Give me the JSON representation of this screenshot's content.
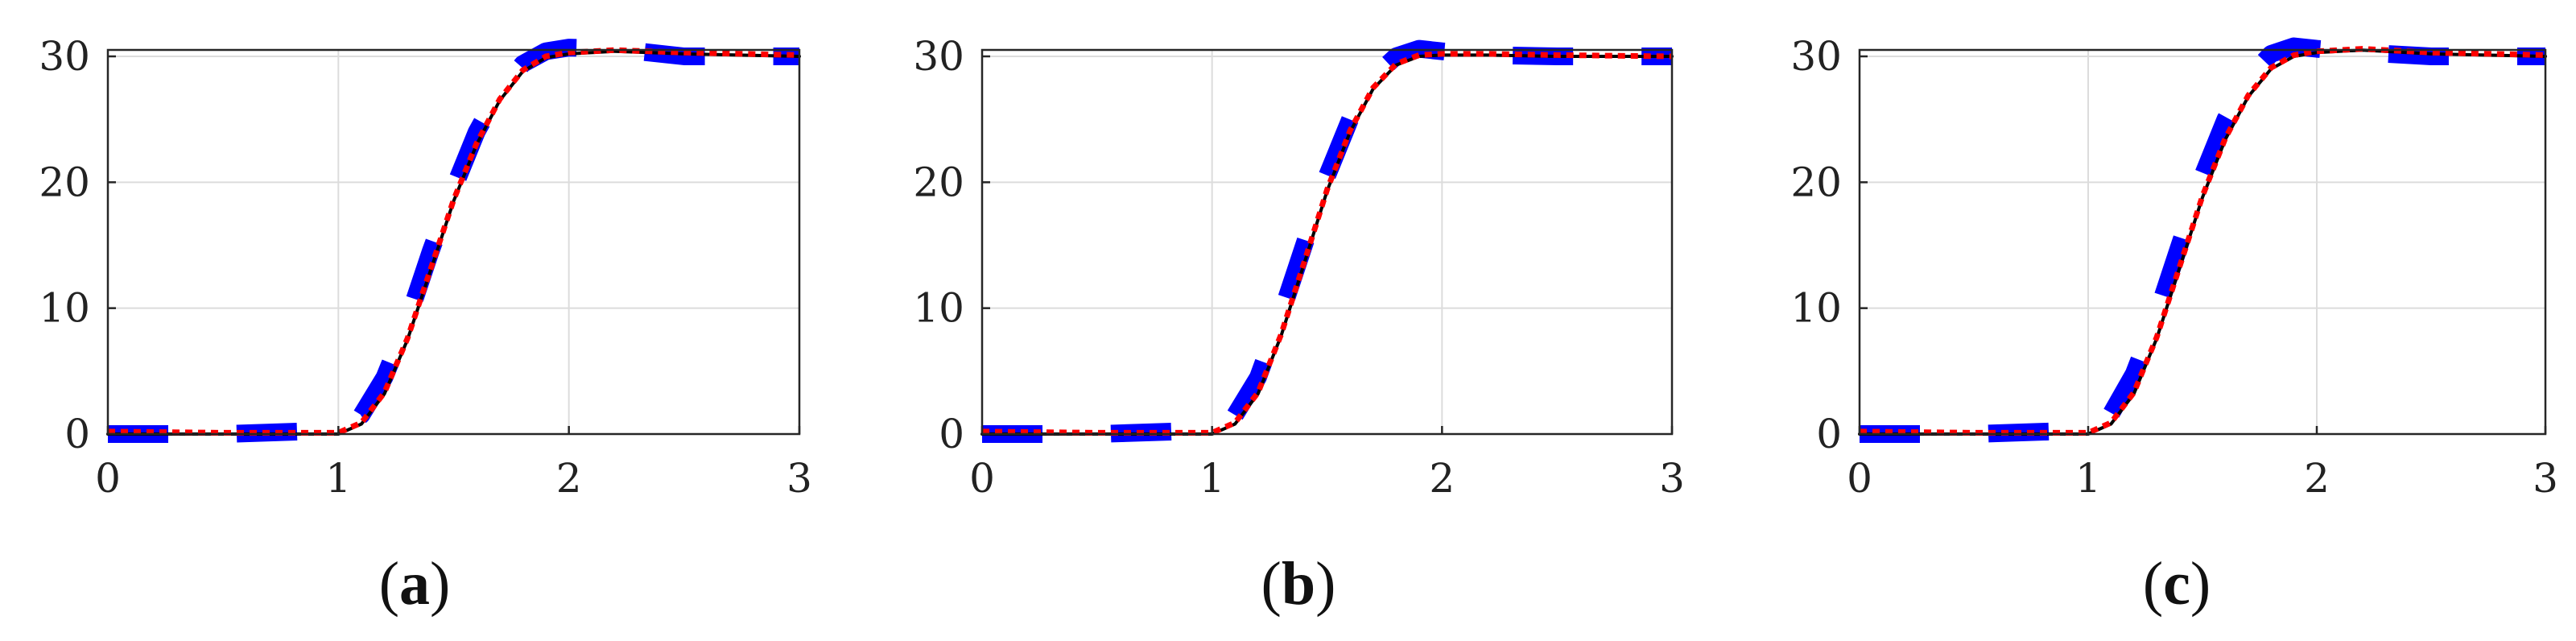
{
  "chart_data": [
    {
      "type": "line",
      "panel_label": "(a)",
      "panel_letter": "a",
      "xlim": [
        0,
        3
      ],
      "ylim": [
        0,
        30
      ],
      "x_ticks": [
        "0",
        "1",
        "2",
        "3"
      ],
      "y_ticks": [
        "0",
        "10",
        "20",
        "30"
      ],
      "grid": true,
      "series": [
        {
          "style": "blue-thick-dashed",
          "color": "#0000ff",
          "x": [
            0,
            0.5,
            1.0,
            1.1,
            1.2,
            1.3,
            1.4,
            1.5,
            1.6,
            1.7,
            1.8,
            1.9,
            2.0,
            2.2,
            2.5,
            3.0
          ],
          "y": [
            0,
            0,
            0.3,
            1.5,
            4.5,
            9,
            14.5,
            19.5,
            24,
            27.3,
            29.4,
            30.4,
            30.7,
            30.6,
            30.0,
            30.0
          ]
        },
        {
          "style": "black-solid",
          "color": "#000000",
          "x": [
            0,
            0.5,
            1.0,
            1.1,
            1.2,
            1.3,
            1.4,
            1.5,
            1.6,
            1.7,
            1.8,
            1.9,
            2.0,
            2.2,
            2.5,
            3.0
          ],
          "y": [
            0,
            0,
            0,
            0.8,
            3.2,
            7.5,
            13,
            18.5,
            23,
            26.5,
            28.8,
            29.9,
            30.2,
            30.4,
            30.2,
            30.0
          ]
        },
        {
          "style": "red-dotted",
          "color": "#ff0000",
          "x": [
            0,
            0.5,
            1.0,
            1.1,
            1.2,
            1.3,
            1.4,
            1.5,
            1.6,
            1.7,
            1.8,
            1.9,
            2.0,
            2.2,
            2.5,
            3.0
          ],
          "y": [
            0.2,
            0.1,
            0.1,
            0.9,
            3.3,
            7.6,
            13.1,
            18.6,
            23.1,
            26.6,
            28.9,
            30.0,
            30.3,
            30.5,
            30.3,
            30.1
          ]
        }
      ]
    },
    {
      "type": "line",
      "panel_label": "(b)",
      "panel_letter": "b",
      "xlim": [
        0,
        3
      ],
      "ylim": [
        0,
        30
      ],
      "x_ticks": [
        "0",
        "1",
        "2",
        "3"
      ],
      "y_ticks": [
        "0",
        "10",
        "20",
        "30"
      ],
      "grid": true,
      "series": [
        {
          "style": "blue-thick-dashed",
          "color": "#0000ff",
          "x": [
            0,
            0.5,
            1.0,
            1.1,
            1.2,
            1.3,
            1.4,
            1.5,
            1.6,
            1.7,
            1.8,
            1.9,
            2.0,
            2.2,
            2.5,
            3.0
          ],
          "y": [
            0,
            0,
            0.3,
            1.5,
            4.5,
            9.5,
            15,
            20.5,
            25,
            28.3,
            30.0,
            30.6,
            30.4,
            30.1,
            30.0,
            30.0
          ]
        },
        {
          "style": "black-solid",
          "color": "#000000",
          "x": [
            0,
            0.5,
            1.0,
            1.1,
            1.2,
            1.3,
            1.4,
            1.5,
            1.6,
            1.7,
            1.8,
            1.9,
            2.0,
            2.2,
            2.5,
            3.0
          ],
          "y": [
            0,
            0,
            0,
            0.8,
            3.2,
            7.8,
            13.5,
            19.3,
            24.0,
            27.4,
            29.3,
            30.0,
            30.1,
            30.1,
            30.0,
            30.0
          ]
        },
        {
          "style": "red-dotted",
          "color": "#ff0000",
          "x": [
            0,
            0.5,
            1.0,
            1.1,
            1.2,
            1.3,
            1.4,
            1.5,
            1.6,
            1.7,
            1.8,
            1.9,
            2.0,
            2.2,
            2.5,
            3.0
          ],
          "y": [
            0.2,
            0.1,
            0.1,
            0.9,
            3.3,
            7.9,
            13.6,
            19.4,
            24.1,
            27.5,
            29.4,
            30.1,
            30.2,
            30.2,
            30.1,
            30.0
          ]
        }
      ]
    },
    {
      "type": "line",
      "panel_label": "(c)",
      "panel_letter": "c",
      "xlim": [
        0,
        3
      ],
      "ylim": [
        0,
        30
      ],
      "x_ticks": [
        "0",
        "1",
        "2",
        "3"
      ],
      "y_ticks": [
        "0",
        "10",
        "20",
        "30"
      ],
      "grid": true,
      "series": [
        {
          "style": "blue-thick-dashed",
          "color": "#0000ff",
          "x": [
            0,
            0.5,
            1.0,
            1.1,
            1.2,
            1.3,
            1.4,
            1.5,
            1.6,
            1.7,
            1.8,
            1.9,
            2.0,
            2.2,
            2.5,
            3.0
          ],
          "y": [
            0,
            0,
            0.3,
            1.6,
            4.8,
            9.5,
            15,
            20.5,
            25,
            28.3,
            30.2,
            30.8,
            30.6,
            30.3,
            30.0,
            30.0
          ]
        },
        {
          "style": "black-solid",
          "color": "#000000",
          "x": [
            0,
            0.5,
            1.0,
            1.1,
            1.2,
            1.3,
            1.4,
            1.5,
            1.6,
            1.7,
            1.8,
            1.9,
            2.0,
            2.2,
            2.5,
            3.0
          ],
          "y": [
            0,
            0,
            0,
            0.8,
            3.2,
            7.6,
            13.2,
            18.8,
            23.4,
            26.8,
            29.0,
            30.0,
            30.3,
            30.5,
            30.2,
            30.0
          ]
        },
        {
          "style": "red-dotted",
          "color": "#ff0000",
          "x": [
            0,
            0.5,
            1.0,
            1.1,
            1.2,
            1.3,
            1.4,
            1.5,
            1.6,
            1.7,
            1.8,
            1.9,
            2.0,
            2.2,
            2.5,
            3.0
          ],
          "y": [
            0.2,
            0.1,
            0.1,
            0.9,
            3.3,
            7.7,
            13.3,
            18.9,
            23.5,
            26.9,
            29.1,
            30.1,
            30.4,
            30.6,
            30.3,
            30.1
          ]
        }
      ]
    }
  ]
}
